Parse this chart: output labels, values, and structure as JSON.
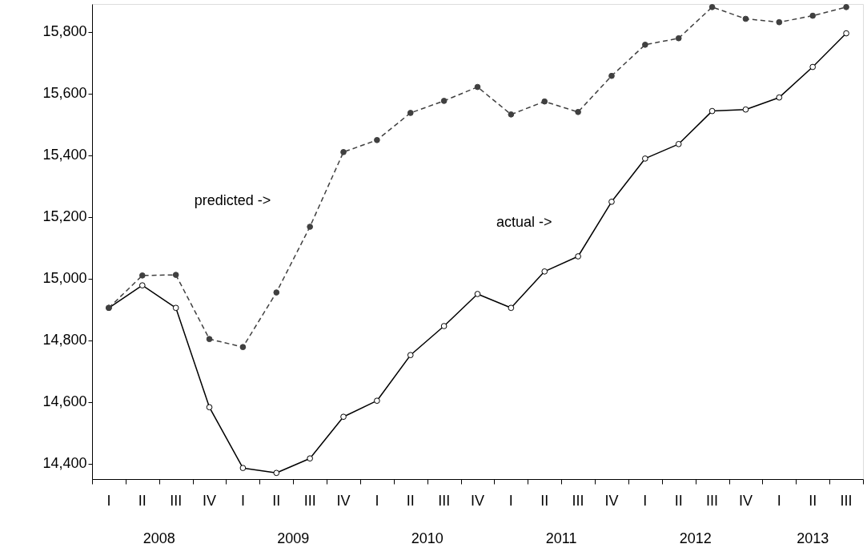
{
  "chart_data": {
    "type": "line",
    "categories": [
      "I",
      "II",
      "III",
      "IV",
      "I",
      "II",
      "III",
      "IV",
      "I",
      "II",
      "III",
      "IV",
      "I",
      "II",
      "III",
      "IV",
      "I",
      "II",
      "III",
      "IV",
      "I",
      "II",
      "III"
    ],
    "series": [
      {
        "name": null,
        "color": "#000000",
        "line_style": "solid",
        "values": [
          14905,
          14978,
          14905,
          14583,
          14386,
          14370,
          14417,
          14552,
          14604,
          14752,
          14846,
          14950,
          14905,
          15023,
          15072,
          15249,
          15389,
          15436,
          15543,
          15548,
          15587,
          15686,
          15795
        ]
      },
      {
        "name": null,
        "color": "#404040",
        "line_style": "dashed",
        "values": [
          14905,
          15010,
          15012,
          14804,
          14778,
          14955,
          15168,
          15410,
          15449,
          15537,
          15576,
          15621,
          15532,
          15574,
          15540,
          15657,
          15758,
          15779,
          15880,
          15842,
          15831,
          15852,
          15880
        ]
      }
    ],
    "ylim": [
      14350,
      15890
    ],
    "yticks": [
      {
        "value": 14400,
        "label": "14,400"
      },
      {
        "value": 14600,
        "label": "14,600"
      },
      {
        "value": 14800,
        "label": "14,800"
      },
      {
        "value": 15000,
        "label": "15,000"
      },
      {
        "value": 15200,
        "label": "15,200"
      },
      {
        "value": 15400,
        "label": "15,400"
      },
      {
        "value": 15600,
        "label": "15,600"
      },
      {
        "value": 15800,
        "label": "15,800"
      }
    ],
    "grid": false,
    "marker": "circle",
    "annotations": [
      "predicted ->",
      "actual ->",
      "2008",
      "2009",
      "2010",
      "2011",
      "2012",
      "2013"
    ]
  }
}
